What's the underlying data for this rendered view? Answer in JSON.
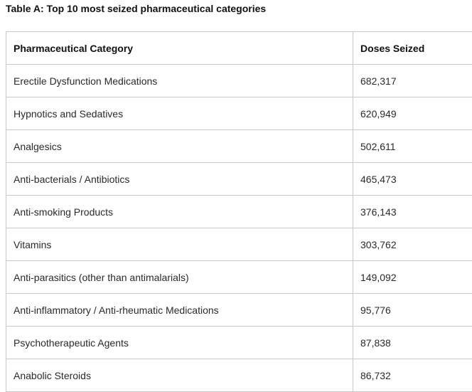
{
  "caption": "Table A: Top 10 most seized pharmaceutical categories",
  "table": {
    "headers": [
      "Pharmaceutical Category",
      "Doses Seized"
    ],
    "rows": [
      {
        "category": "Erectile Dysfunction Medications",
        "doses": "682,317"
      },
      {
        "category": "Hypnotics and Sedatives",
        "doses": "620,949"
      },
      {
        "category": "Analgesics",
        "doses": "502,611"
      },
      {
        "category": "Anti-bacterials / Antibiotics",
        "doses": "465,473"
      },
      {
        "category": "Anti-smoking Products",
        "doses": "376,143"
      },
      {
        "category": "Vitamins",
        "doses": "303,762"
      },
      {
        "category": "Anti-parasitics (other than antimalarials)",
        "doses": "149,092"
      },
      {
        "category": "Anti-inflammatory / Anti-rheumatic Medications",
        "doses": "95,776"
      },
      {
        "category": "Psychotherapeutic Agents",
        "doses": "87,838"
      },
      {
        "category": "Anabolic Steroids",
        "doses": "86,732"
      }
    ]
  }
}
